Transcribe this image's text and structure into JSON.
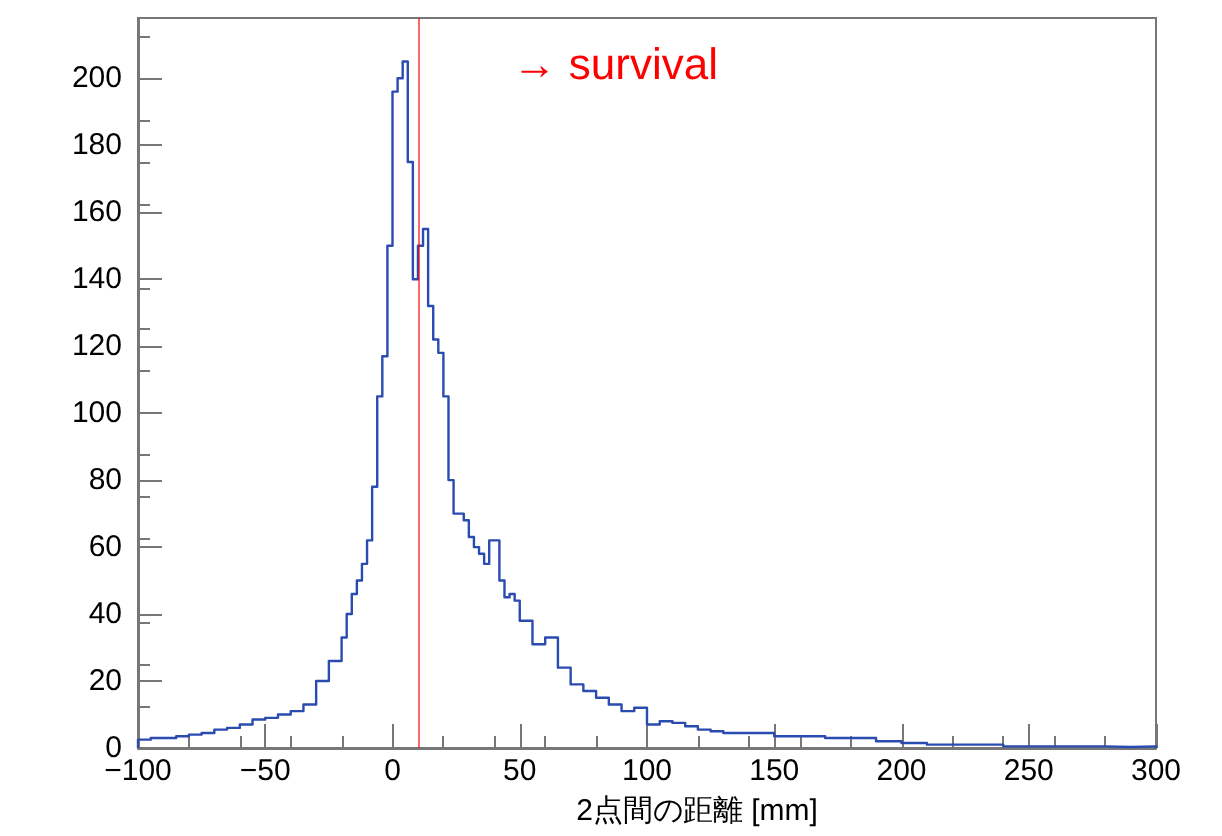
{
  "chart_data": {
    "type": "histogram",
    "xlabel": "2点間の距離 [mm]",
    "bins": [
      -100,
      -95,
      -90,
      -85,
      -80,
      -75,
      -70,
      -65,
      -60,
      -55,
      -50,
      -45,
      -40,
      -35,
      -30,
      -25,
      -20,
      -18,
      -16,
      -14,
      -12,
      -10,
      -8,
      -6,
      -4,
      -2,
      0,
      2,
      4,
      6,
      8,
      10,
      12,
      14,
      16,
      18,
      20,
      22,
      24,
      26,
      28,
      30,
      32,
      34,
      36,
      38,
      40,
      42,
      44,
      46,
      48,
      50,
      55,
      60,
      65,
      70,
      75,
      80,
      85,
      90,
      95,
      100,
      105,
      110,
      115,
      120,
      125,
      130,
      135,
      140,
      145,
      150,
      160,
      170,
      180,
      190,
      200,
      210,
      220,
      230,
      240,
      250,
      260,
      270,
      280,
      290,
      300
    ],
    "values": [
      2.5,
      3,
      3,
      3.5,
      4,
      4.5,
      5.5,
      6,
      7,
      8.5,
      9,
      10,
      11,
      13,
      20,
      26,
      33,
      40,
      46,
      50,
      55,
      62,
      78,
      105,
      117,
      150,
      196,
      200,
      205,
      175,
      140,
      150,
      155,
      132,
      122,
      118,
      105,
      80,
      70,
      70,
      68,
      63,
      60,
      58,
      55,
      62,
      62,
      50,
      45,
      46,
      44,
      38,
      31,
      33,
      24,
      19,
      17,
      15,
      13,
      11,
      12,
      7,
      8,
      7.5,
      6.5,
      5.5,
      5,
      4.5,
      4.5,
      4.5,
      4.5,
      3.5,
      3.5,
      3,
      3,
      2,
      1.5,
      1,
      1,
      1,
      0.5,
      0.5,
      0.5,
      0.5,
      0.3,
      0.5
    ],
    "color": "#2a4bb0",
    "xlim": [
      -100,
      300
    ],
    "xticks": [
      -100,
      -50,
      0,
      50,
      100,
      150,
      200,
      250,
      300
    ],
    "ylim": [
      0,
      218
    ],
    "yticks": [
      0,
      20,
      40,
      60,
      80,
      100,
      120,
      140,
      160,
      180,
      200
    ],
    "grid": false,
    "ref_lines": [
      {
        "axis": "x",
        "value": 10,
        "label": "→ survival",
        "color": "#ff0000"
      }
    ]
  }
}
